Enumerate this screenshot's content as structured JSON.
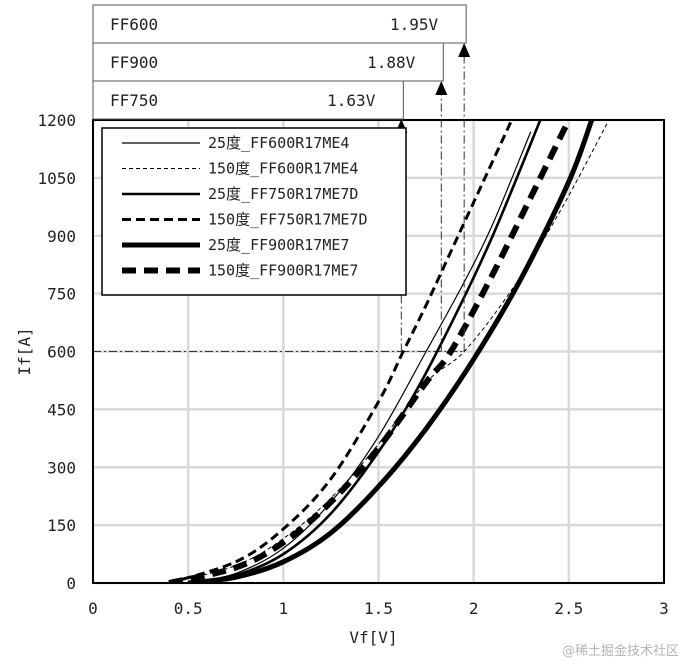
{
  "chart_data": {
    "type": "line",
    "xlabel": "Vf[V]",
    "ylabel": "If[A]",
    "xlim": [
      0,
      3
    ],
    "ylim": [
      0,
      1200
    ],
    "xticks": [
      "0",
      "0.5",
      "1",
      "1.5",
      "2",
      "2.5",
      "3"
    ],
    "yticks": [
      "0",
      "150",
      "300",
      "450",
      "600",
      "750",
      "900",
      "1050",
      "1200"
    ],
    "grid": true,
    "legend_position": "top-left",
    "series": [
      {
        "name": "25度_FF600R17ME4",
        "line_style": "solid-thin",
        "x": [
          0.5,
          0.75,
          1.0,
          1.25,
          1.5,
          1.75,
          1.95,
          2.1,
          2.3
        ],
        "y": [
          0,
          25,
          90,
          210,
          380,
          600,
          780,
          930,
          1170
        ]
      },
      {
        "name": "150度_FF600R17ME4",
        "line_style": "dashed-thin",
        "x": [
          0.4,
          0.75,
          1.0,
          1.25,
          1.5,
          1.75,
          1.95,
          2.2,
          2.45,
          2.7
        ],
        "y": [
          0,
          45,
          115,
          220,
          360,
          520,
          600,
          760,
          960,
          1190
        ]
      },
      {
        "name": "25度_FF750R17ME7D",
        "line_style": "solid-medium",
        "x": [
          0.5,
          0.75,
          1.0,
          1.25,
          1.5,
          1.7,
          1.9,
          2.1,
          2.35
        ],
        "y": [
          0,
          20,
          75,
          180,
          340,
          500,
          690,
          900,
          1200
        ]
      },
      {
        "name": "150度_FF750R17ME7D",
        "line_style": "dashed-medium",
        "x": [
          0.4,
          0.75,
          1.0,
          1.25,
          1.5,
          1.63,
          1.75,
          1.9,
          2.05,
          2.2
        ],
        "y": [
          0,
          55,
          140,
          270,
          470,
          600,
          720,
          880,
          1040,
          1200
        ]
      },
      {
        "name": "25度_FF900R17ME7",
        "line_style": "solid-thick",
        "x": [
          0.5,
          0.75,
          1.0,
          1.25,
          1.5,
          1.75,
          2.0,
          2.25,
          2.5,
          2.62
        ],
        "y": [
          0,
          15,
          55,
          130,
          250,
          400,
          580,
          790,
          1040,
          1200
        ]
      },
      {
        "name": "150度_FF900R17ME7",
        "line_style": "dashed-thick",
        "x": [
          0.4,
          0.75,
          1.0,
          1.25,
          1.5,
          1.75,
          1.88,
          2.1,
          2.3,
          2.5
        ],
        "y": [
          0,
          40,
          105,
          210,
          350,
          520,
          600,
          800,
          1000,
          1200
        ]
      }
    ],
    "annotations": {
      "reference_current": 600,
      "table": [
        {
          "device": "FF600",
          "vf": "1.95V",
          "x": 1.95
        },
        {
          "device": "FF900",
          "vf": "1.88V",
          "x": 1.83
        },
        {
          "device": "FF750",
          "vf": "1.63V",
          "x": 1.62
        }
      ]
    }
  },
  "watermark": "@稀土掘金技术社区"
}
